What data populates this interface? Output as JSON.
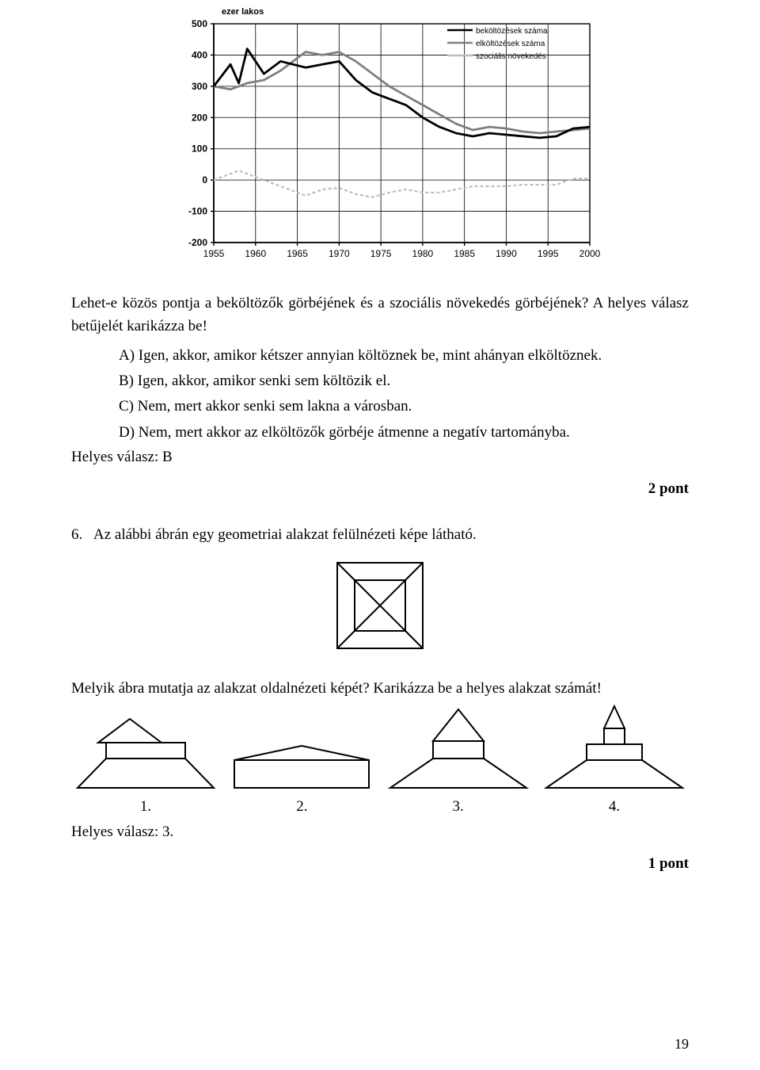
{
  "chart": {
    "type": "line",
    "title": "ezer lakos",
    "title_fontsize": 11,
    "title_weight": "bold",
    "title_color": "#000000",
    "background_color": "#ffffff",
    "grid_color": "#000000",
    "border_color": "#000000",
    "xlim": [
      1955,
      2000
    ],
    "ylim": [
      -200,
      500
    ],
    "xtick_step": 5,
    "ytick_step": 100,
    "xticks": [
      "1955",
      "1960",
      "1965",
      "1970",
      "1975",
      "1980",
      "1985",
      "1990",
      "1995",
      "2000"
    ],
    "yticks": [
      "500",
      "400",
      "300",
      "200",
      "100",
      "0",
      "-100",
      "-200"
    ],
    "legend": {
      "items": [
        {
          "label": "beköltözések száma",
          "color": "#000000",
          "width": 2.5
        },
        {
          "label": "elköltözések száma",
          "color": "#808080",
          "width": 2.5
        },
        {
          "label": "szociális növekedés",
          "color": "#bdbdbd",
          "width": 2.5
        }
      ],
      "position": "top-right-inside",
      "fontsize": 10
    },
    "series": {
      "bekoltozesek": {
        "color": "#000000",
        "width": 2.8,
        "points": [
          [
            1955,
            300
          ],
          [
            1957,
            370
          ],
          [
            1958,
            310
          ],
          [
            1959,
            420
          ],
          [
            1961,
            340
          ],
          [
            1963,
            380
          ],
          [
            1966,
            360
          ],
          [
            1968,
            370
          ],
          [
            1970,
            380
          ],
          [
            1972,
            320
          ],
          [
            1974,
            280
          ],
          [
            1976,
            260
          ],
          [
            1978,
            240
          ],
          [
            1980,
            200
          ],
          [
            1982,
            170
          ],
          [
            1984,
            150
          ],
          [
            1986,
            140
          ],
          [
            1988,
            150
          ],
          [
            1990,
            145
          ],
          [
            1992,
            140
          ],
          [
            1994,
            135
          ],
          [
            1996,
            140
          ],
          [
            1998,
            165
          ],
          [
            2000,
            170
          ]
        ]
      },
      "elkoltozesek": {
        "color": "#808080",
        "width": 2.8,
        "points": [
          [
            1955,
            300
          ],
          [
            1957,
            290
          ],
          [
            1959,
            310
          ],
          [
            1961,
            320
          ],
          [
            1963,
            350
          ],
          [
            1966,
            410
          ],
          [
            1968,
            400
          ],
          [
            1970,
            410
          ],
          [
            1972,
            380
          ],
          [
            1974,
            340
          ],
          [
            1976,
            300
          ],
          [
            1978,
            270
          ],
          [
            1980,
            240
          ],
          [
            1982,
            210
          ],
          [
            1984,
            180
          ],
          [
            1986,
            160
          ],
          [
            1988,
            170
          ],
          [
            1990,
            165
          ],
          [
            1992,
            155
          ],
          [
            1994,
            150
          ],
          [
            1996,
            155
          ],
          [
            1998,
            160
          ],
          [
            2000,
            165
          ]
        ]
      },
      "szocialis": {
        "color": "#bdbdbd",
        "width": 2.2,
        "dash": "4 3",
        "points": [
          [
            1955,
            0
          ],
          [
            1958,
            30
          ],
          [
            1960,
            10
          ],
          [
            1963,
            -20
          ],
          [
            1966,
            -50
          ],
          [
            1968,
            -30
          ],
          [
            1970,
            -25
          ],
          [
            1972,
            -45
          ],
          [
            1974,
            -55
          ],
          [
            1976,
            -40
          ],
          [
            1978,
            -30
          ],
          [
            1980,
            -40
          ],
          [
            1982,
            -40
          ],
          [
            1984,
            -30
          ],
          [
            1986,
            -20
          ],
          [
            1988,
            -20
          ],
          [
            1990,
            -20
          ],
          [
            1992,
            -15
          ],
          [
            1994,
            -15
          ],
          [
            1996,
            -15
          ],
          [
            1998,
            5
          ],
          [
            2000,
            5
          ]
        ]
      }
    }
  },
  "question5": {
    "intro": "Lehet-e közös pontja a beköltözők görbéjének és a szociális növekedés görbéjének? A helyes válasz betűjelét karikázza be!",
    "options": {
      "A": "A) Igen, akkor, amikor kétszer annyian költöznek be, mint ahányan elköltöznek.",
      "B": "B) Igen, akkor, amikor senki sem költözik el.",
      "C": "C) Nem, mert akkor senki sem lakna a városban.",
      "D": "D) Nem, mert akkor az elköltözők görbéje átmenne a negatív tartományba."
    },
    "answer_label": "Helyes válasz: B",
    "points": "2 pont"
  },
  "question6": {
    "num": "6.",
    "text": "Az alábbi ábrán egy geometriai alakzat felülnézeti képe látható.",
    "prompt": "Melyik ábra mutatja az alakzat oldalnézeti képét? Karikázza be a helyes alakzat számát!",
    "option_labels": [
      "1.",
      "2.",
      "3.",
      "4."
    ],
    "answer_label": "Helyes válasz: 3.",
    "points": "1 pont"
  },
  "page_number": "19",
  "shapes": {
    "stroke": "#000000",
    "stroke_width": 2,
    "fill": "#ffffff"
  }
}
